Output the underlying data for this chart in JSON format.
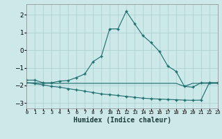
{
  "xlabel": "Humidex (Indice chaleur)",
  "x": [
    0,
    1,
    2,
    3,
    4,
    5,
    6,
    7,
    8,
    9,
    10,
    11,
    12,
    13,
    14,
    15,
    16,
    17,
    18,
    19,
    20,
    21,
    22,
    23
  ],
  "y_main": [
    -1.7,
    -1.7,
    -1.85,
    -1.85,
    -1.75,
    -1.72,
    -1.55,
    -1.35,
    -0.65,
    -0.35,
    1.2,
    1.2,
    2.2,
    1.5,
    0.82,
    0.42,
    -0.08,
    -0.9,
    -1.2,
    -2.05,
    -2.1,
    -1.85,
    -1.85,
    -1.85
  ],
  "y_flat": [
    -1.85,
    -1.85,
    -1.88,
    -1.88,
    -1.88,
    -1.88,
    -1.88,
    -1.88,
    -1.88,
    -1.88,
    -1.88,
    -1.88,
    -1.88,
    -1.88,
    -1.88,
    -1.88,
    -1.88,
    -1.88,
    -1.88,
    -2.05,
    -1.88,
    -1.88,
    -1.88,
    -1.88
  ],
  "y_lower": [
    -1.85,
    -1.9,
    -1.97,
    -2.05,
    -2.1,
    -2.18,
    -2.25,
    -2.32,
    -2.4,
    -2.48,
    -2.52,
    -2.57,
    -2.62,
    -2.67,
    -2.72,
    -2.75,
    -2.77,
    -2.79,
    -2.81,
    -2.83,
    -2.84,
    -2.83,
    -1.85,
    -1.85
  ],
  "bg_color": "#cce8e8",
  "grid_color": "#aacece",
  "line_color": "#1a6b6b",
  "ylim": [
    -3.3,
    2.6
  ],
  "yticks": [
    -3,
    -2,
    -1,
    0,
    1,
    2
  ],
  "xlim": [
    0,
    23
  ]
}
